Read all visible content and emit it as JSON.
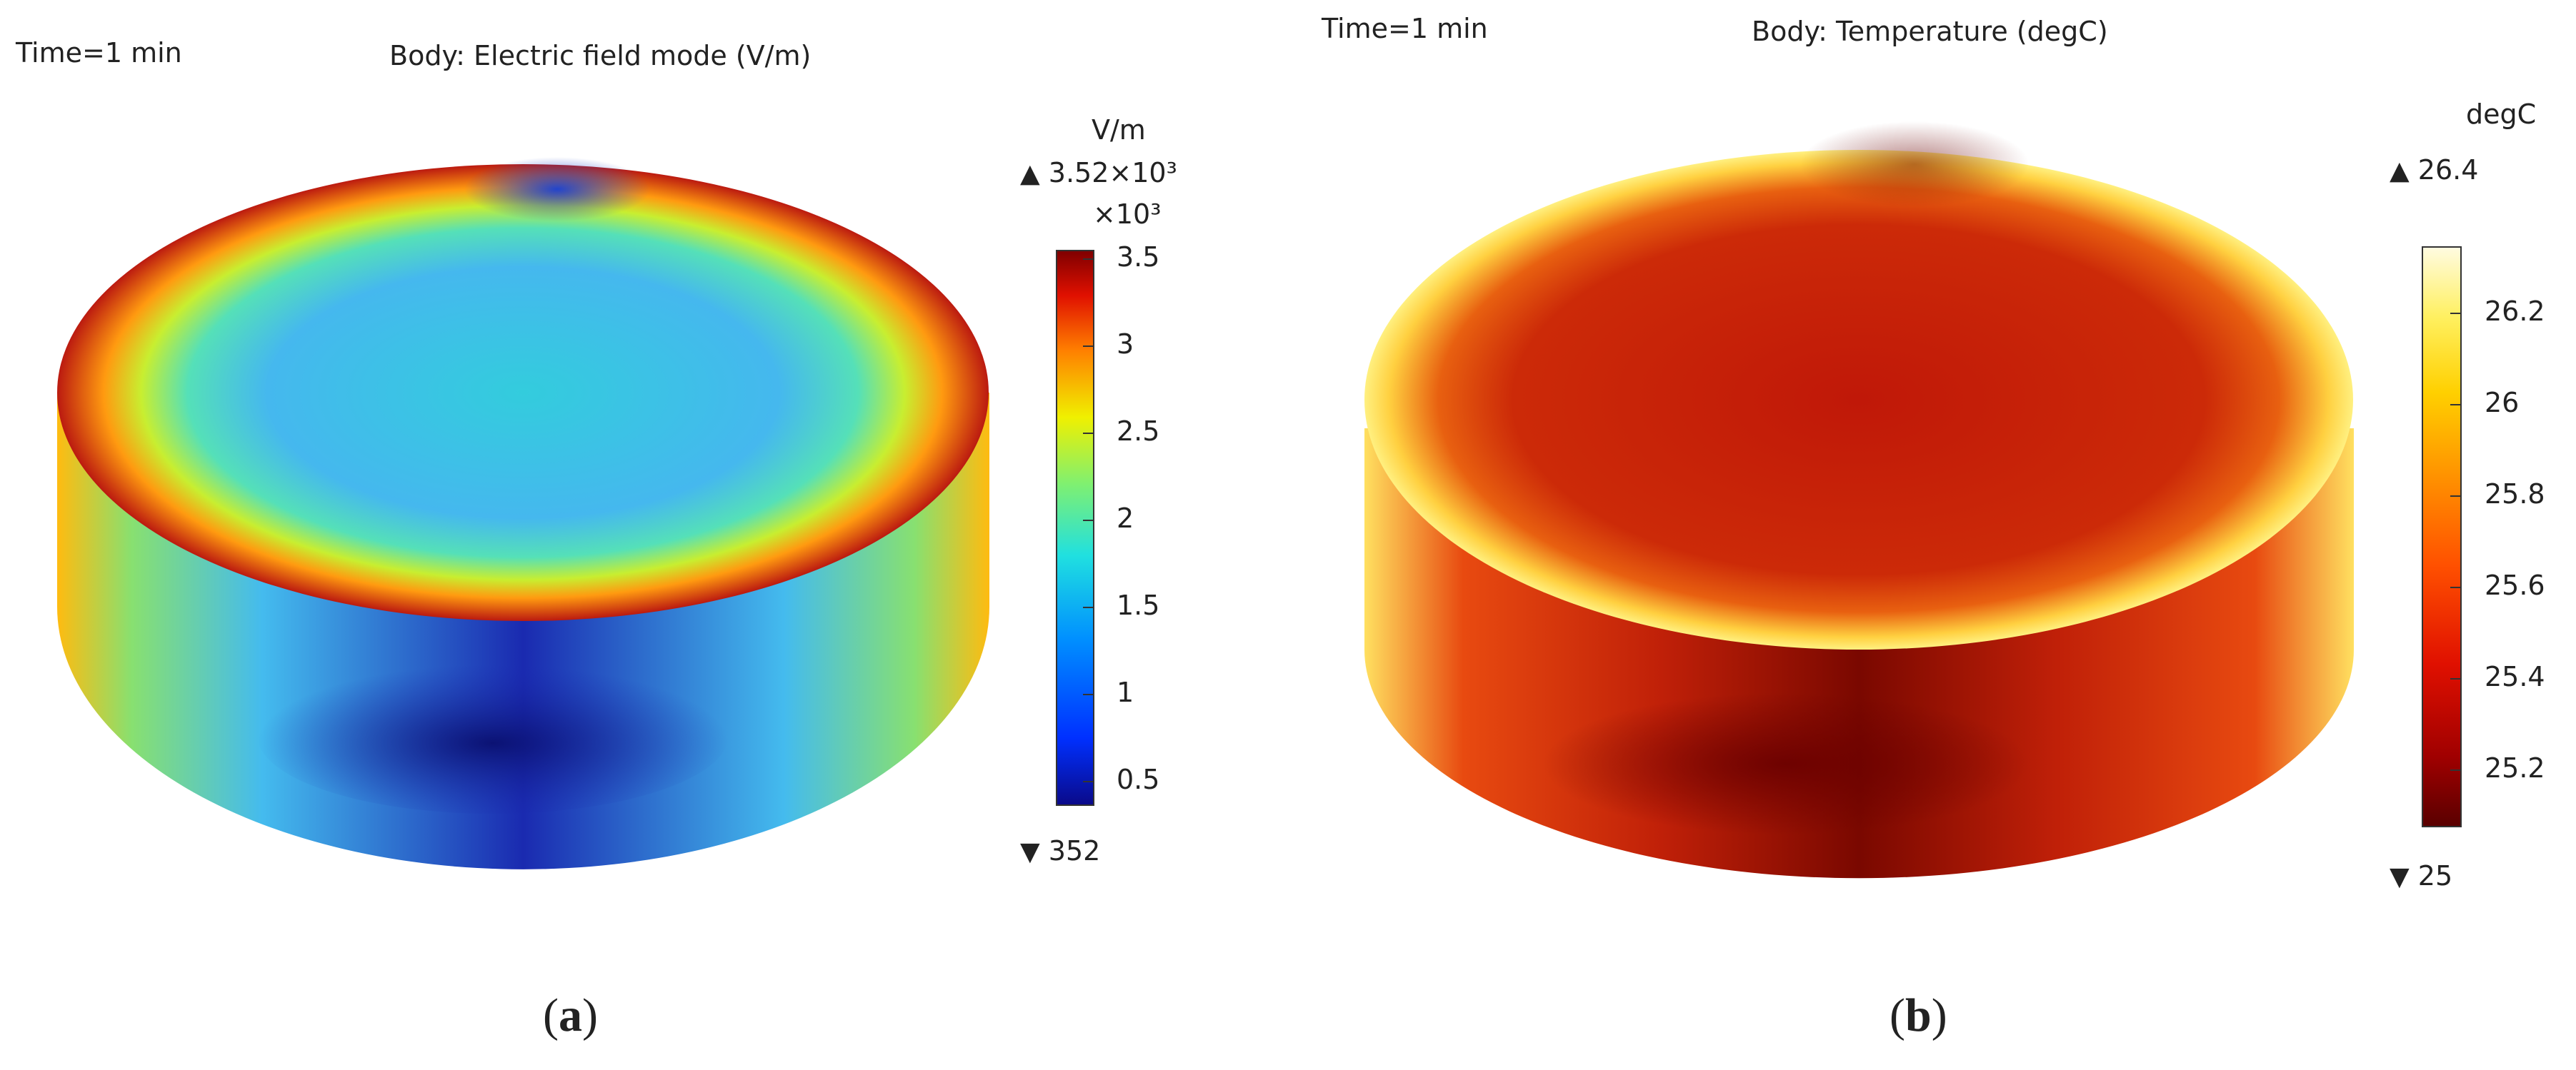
{
  "panels": [
    {
      "time_label": "Time=1 min",
      "title": "Body: Electric field mode (V/m)",
      "unit": "V/m",
      "max_label": "3.52×10³",
      "multiplier": "×10³",
      "ticks": [
        "3.5",
        "3",
        "2.5",
        "2",
        "1.5",
        "1",
        "0.5"
      ],
      "min_label": "352",
      "caption_letter": "a",
      "colormap": "jet"
    },
    {
      "time_label": "Time=1 min",
      "title": "Body: Temperature (degC)",
      "unit": "degC",
      "max_label": "26.4",
      "ticks": [
        "26.2",
        "26",
        "25.8",
        "25.6",
        "25.4",
        "25.2"
      ],
      "min_label": "25",
      "caption_letter": "b",
      "colormap": "hot"
    }
  ],
  "caption_open": "(",
  "caption_close": ")",
  "max_marker": "▲",
  "min_marker": "▼"
}
